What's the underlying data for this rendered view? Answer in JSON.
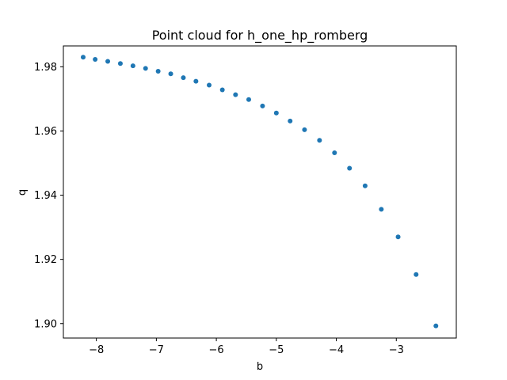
{
  "chart_data": {
    "type": "scatter",
    "title": "Point cloud for h_one_hp_romberg",
    "xlabel": "b",
    "ylabel": "q",
    "xlim": [
      -8.55,
      -2.0
    ],
    "ylim": [
      1.8955,
      1.9865
    ],
    "xticks": [
      -8,
      -7,
      -6,
      -5,
      -4,
      -3
    ],
    "yticks": [
      1.9,
      1.92,
      1.94,
      1.96,
      1.98
    ],
    "xtick_labels": [
      "−8",
      "−7",
      "−6",
      "−5",
      "−4",
      "−3"
    ],
    "ytick_labels": [
      "1.90",
      "1.92",
      "1.94",
      "1.96",
      "1.98"
    ],
    "grid": false,
    "marker_color": "#1f77b4",
    "points": [
      {
        "x": -8.22,
        "y": 1.983
      },
      {
        "x": -8.02,
        "y": 1.9823
      },
      {
        "x": -7.81,
        "y": 1.9817
      },
      {
        "x": -7.6,
        "y": 1.981
      },
      {
        "x": -7.39,
        "y": 1.9803
      },
      {
        "x": -7.18,
        "y": 1.9795
      },
      {
        "x": -6.97,
        "y": 1.9786
      },
      {
        "x": -6.76,
        "y": 1.9778
      },
      {
        "x": -6.55,
        "y": 1.9766
      },
      {
        "x": -6.34,
        "y": 1.9755
      },
      {
        "x": -6.12,
        "y": 1.9743
      },
      {
        "x": -5.9,
        "y": 1.9728
      },
      {
        "x": -5.68,
        "y": 1.9713
      },
      {
        "x": -5.46,
        "y": 1.9698
      },
      {
        "x": -5.23,
        "y": 1.9678
      },
      {
        "x": -5.0,
        "y": 1.9656
      },
      {
        "x": -4.77,
        "y": 1.9631
      },
      {
        "x": -4.53,
        "y": 1.9604
      },
      {
        "x": -4.28,
        "y": 1.9571
      },
      {
        "x": -4.03,
        "y": 1.9532
      },
      {
        "x": -3.78,
        "y": 1.9484
      },
      {
        "x": -3.52,
        "y": 1.9429
      },
      {
        "x": -3.25,
        "y": 1.9356
      },
      {
        "x": -2.97,
        "y": 1.927
      },
      {
        "x": -2.67,
        "y": 1.9153
      },
      {
        "x": -2.34,
        "y": 1.8993
      }
    ]
  }
}
